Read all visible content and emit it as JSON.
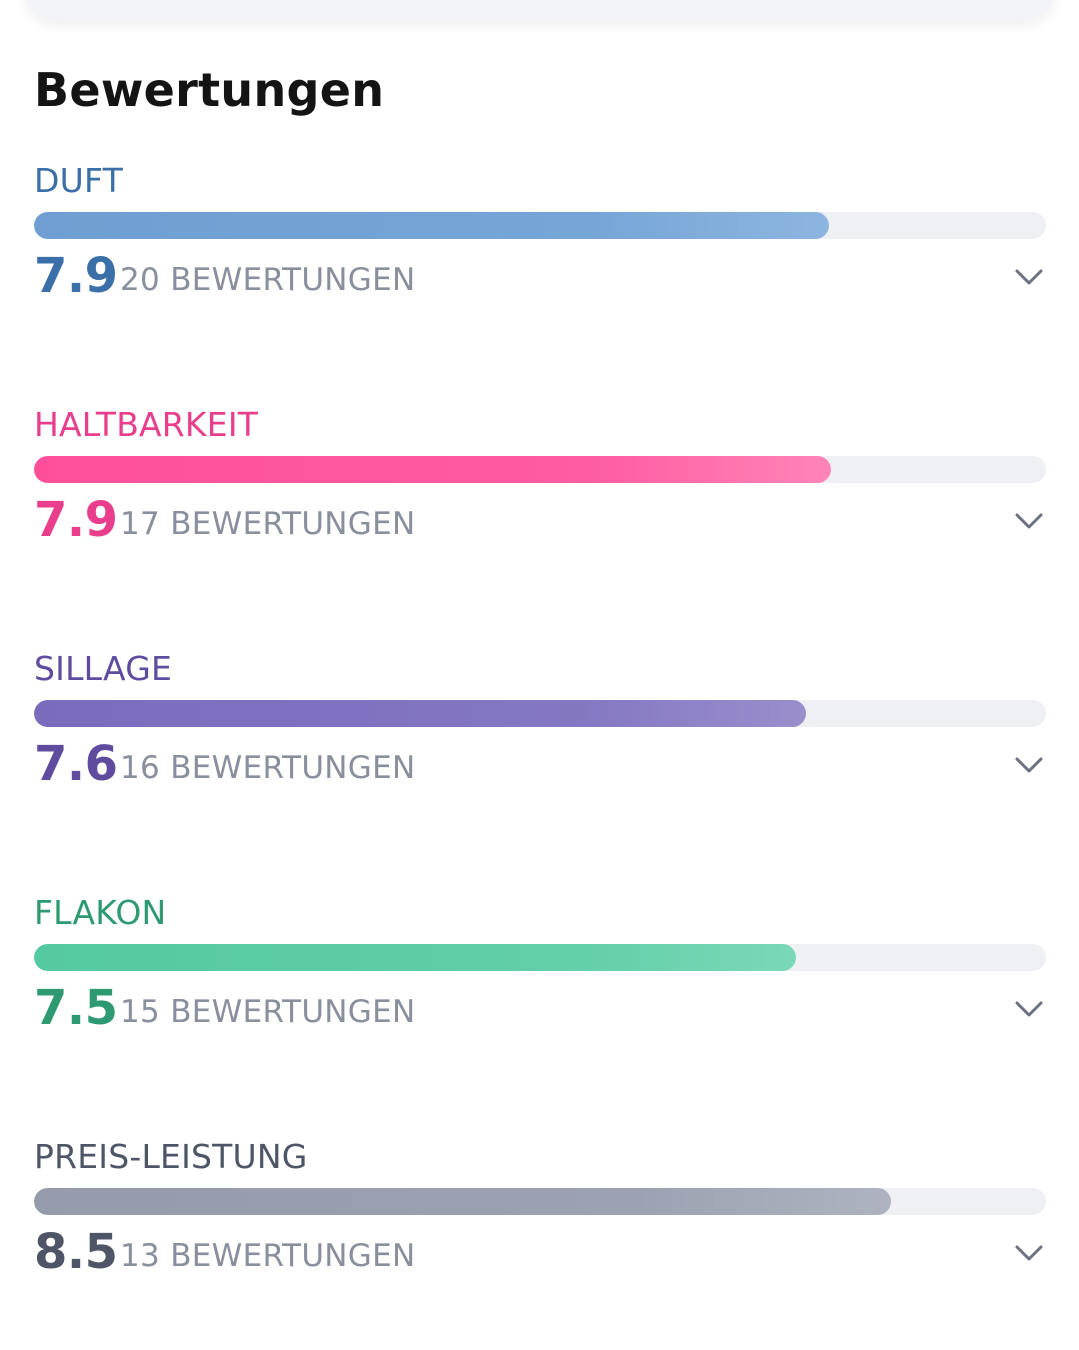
{
  "section": {
    "title": "Bewertungen"
  },
  "ratings": [
    {
      "label": "DUFT",
      "score": "7.9",
      "count_text": "20 BEWERTUNGEN",
      "fill_fraction": 0.786,
      "color": "#3a6fa8",
      "bar_color": "#76a6d6",
      "icon": "chevron-down-icon"
    },
    {
      "label": "HALTBARKEIT",
      "score": "7.9",
      "count_text": "17 BEWERTUNGEN",
      "fill_fraction": 0.788,
      "color": "#e83e8c",
      "bar_color": "#ff5ca2",
      "icon": "chevron-down-icon"
    },
    {
      "label": "SILLAGE",
      "score": "7.6",
      "count_text": "16 BEWERTUNGEN",
      "fill_fraction": 0.763,
      "color": "#5f4c9e",
      "bar_color": "#8477c2",
      "icon": "chevron-down-icon"
    },
    {
      "label": "FLAKON",
      "score": "7.5",
      "count_text": "15 BEWERTUNGEN",
      "fill_fraction": 0.753,
      "color": "#2e9a72",
      "bar_color": "#62cfa8",
      "icon": "chevron-down-icon"
    },
    {
      "label": "PREIS-LEISTUNG",
      "score": "8.5",
      "count_text": "13 BEWERTUNGEN",
      "fill_fraction": 0.847,
      "color": "#4e5566",
      "bar_color": "#9ca2b1",
      "icon": "chevron-down-icon"
    }
  ]
}
